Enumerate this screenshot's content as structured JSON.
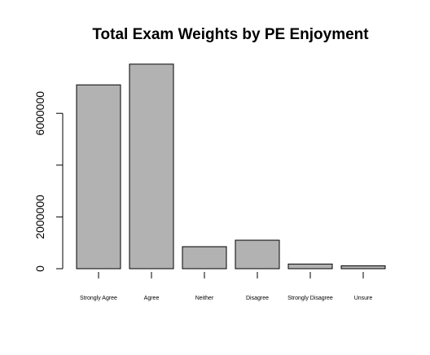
{
  "chart_data": {
    "type": "bar",
    "title": "Total Exam Weights by PE Enjoyment",
    "xlabel": "",
    "ylabel": "",
    "categories": [
      "Strongly Agree",
      "Agree",
      "Neither",
      "Disagree",
      "Strongly Disagree",
      "Unsure"
    ],
    "values": [
      7100000,
      7900000,
      850000,
      1100000,
      180000,
      110000
    ],
    "ylim": [
      0,
      8000000
    ],
    "yticks": [
      0,
      2000000,
      4000000,
      6000000
    ],
    "ytick_labels": [
      "0",
      "2000000",
      "",
      "6000000"
    ],
    "bar_color": "#b2b2b2",
    "grid": false,
    "legend": "none"
  }
}
